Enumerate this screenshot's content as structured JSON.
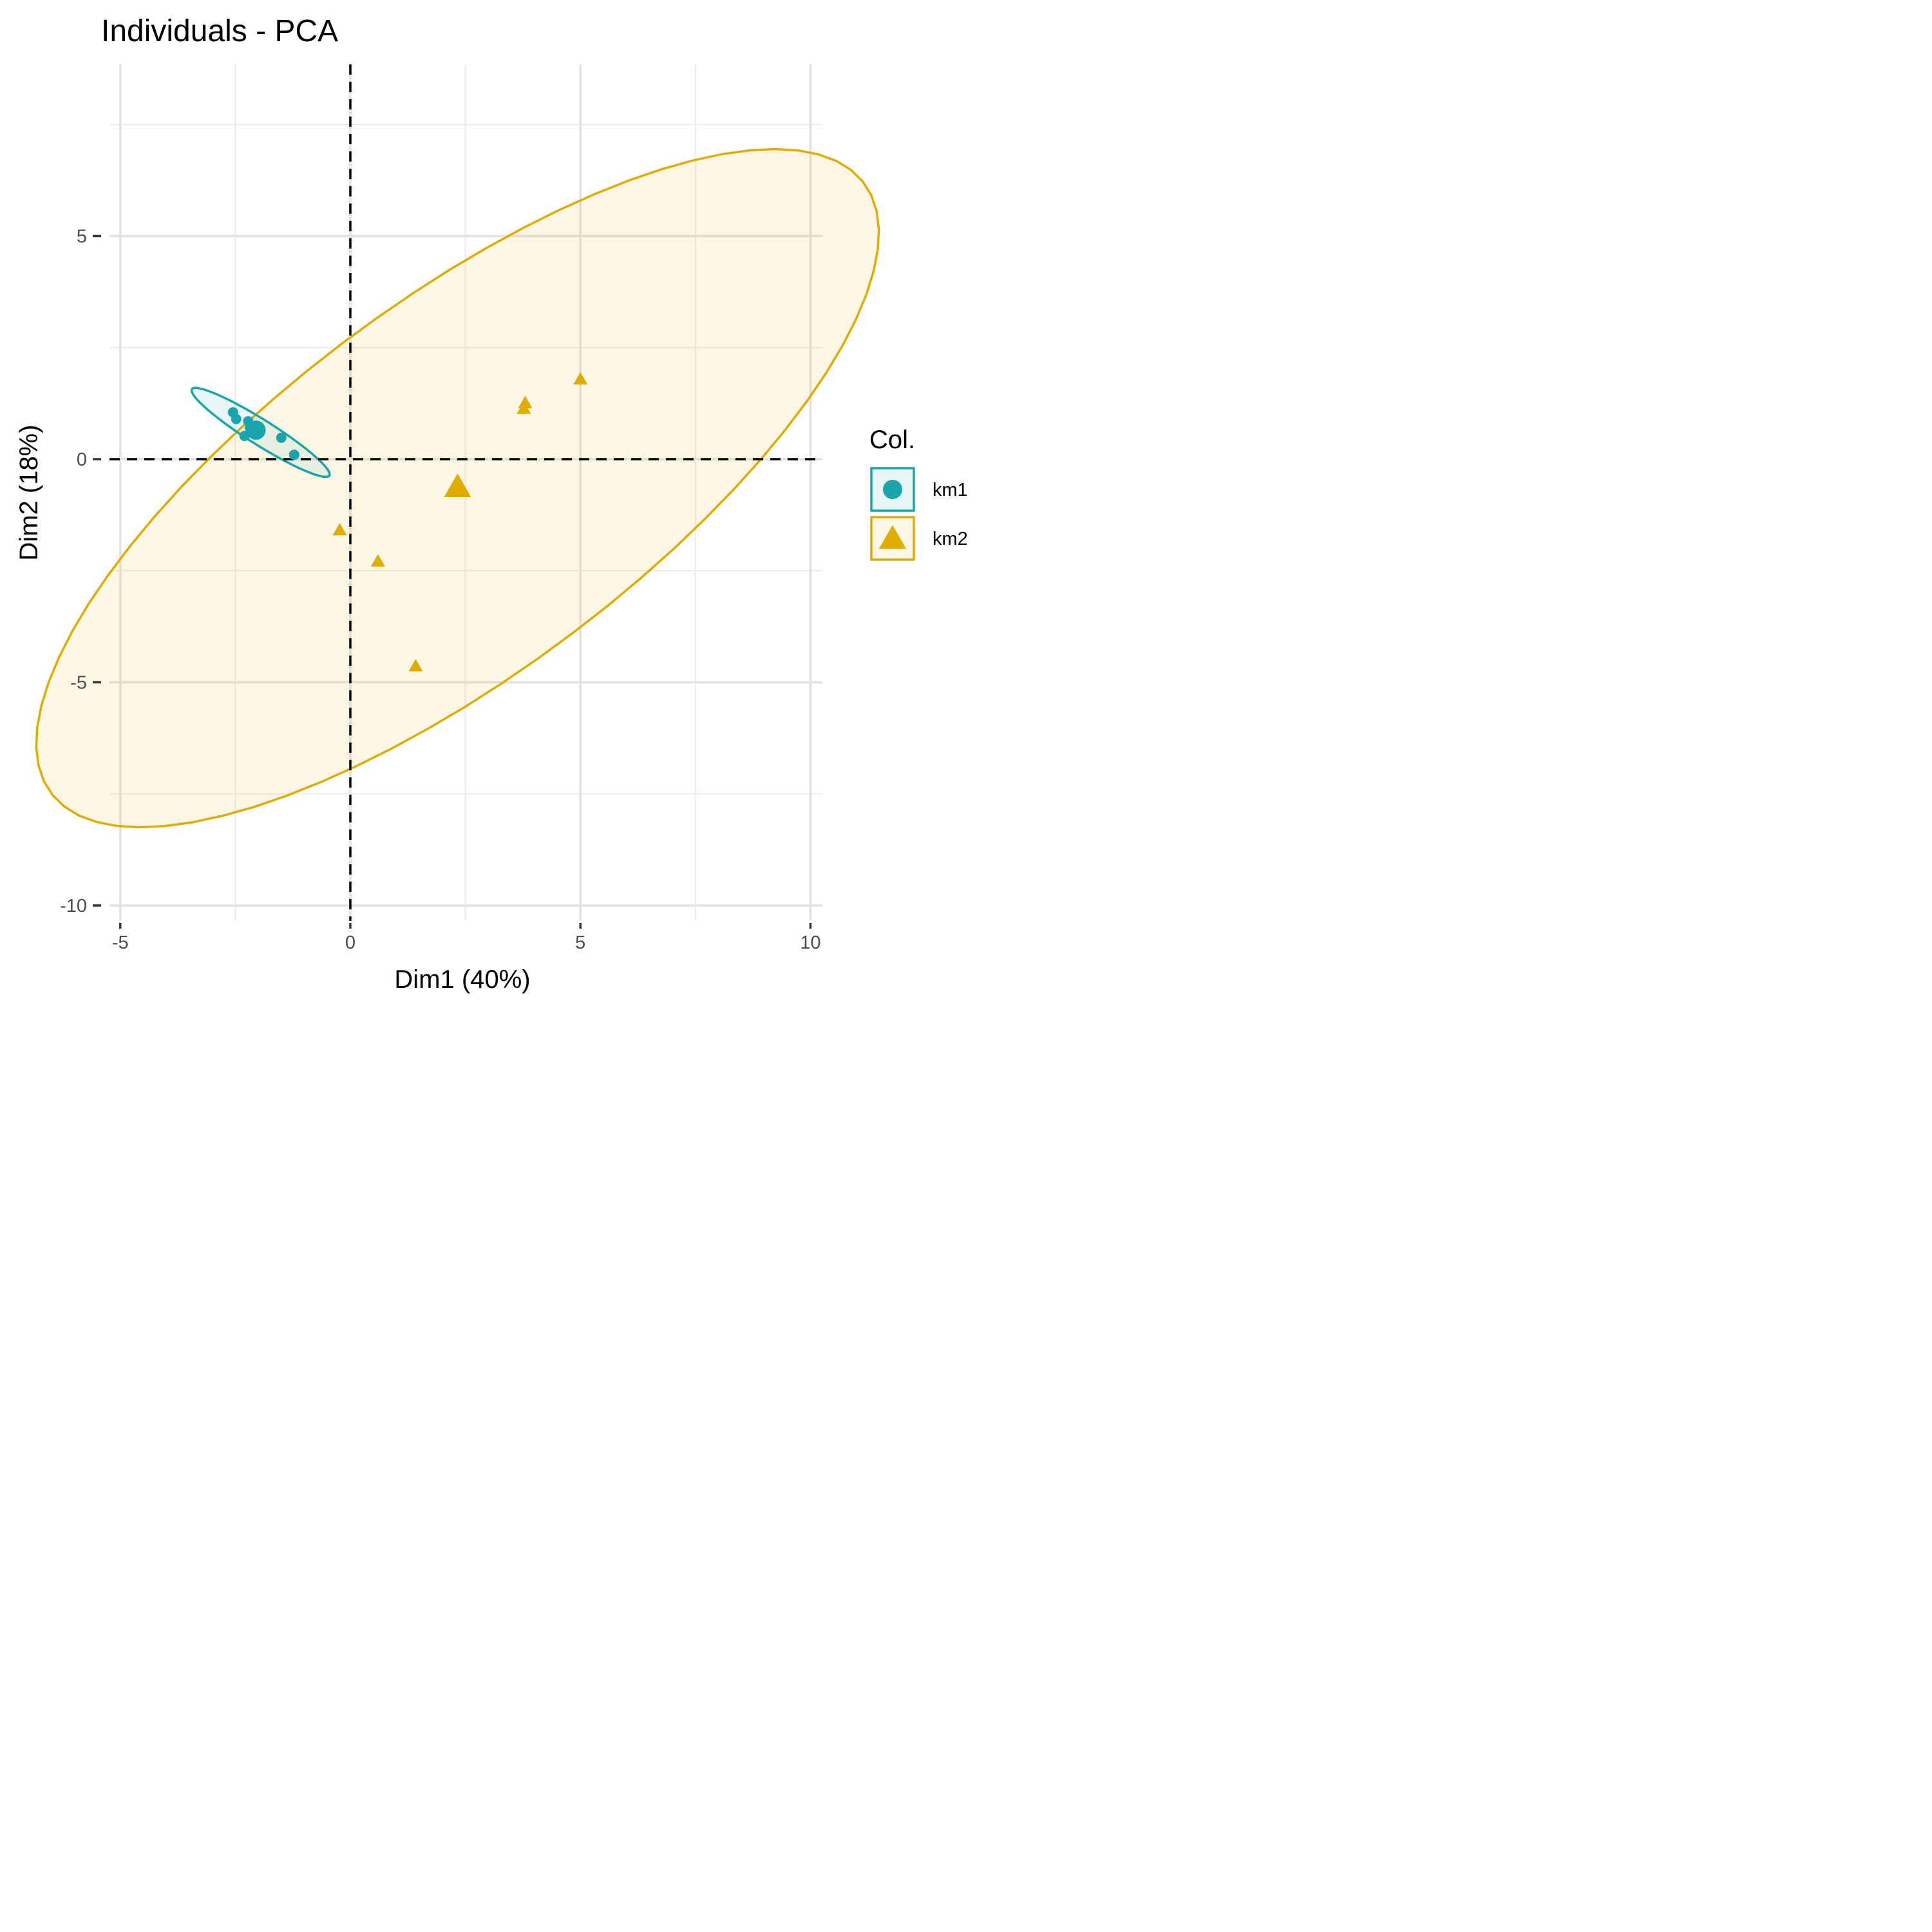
{
  "chart_data": {
    "type": "scatter",
    "title": "Individuals - PCA",
    "xlabel": "Dim1 (40%)",
    "ylabel": "Dim2 (18%)",
    "xlim": [
      -5,
      10
    ],
    "ylim": [
      -10,
      8.5
    ],
    "xticks": [
      -5,
      0,
      5,
      10
    ],
    "xtick_labels": [
      "-5",
      "0",
      "5",
      "10"
    ],
    "yticks": [
      -10,
      -5,
      0,
      5
    ],
    "ytick_labels": [
      "-10",
      "-5",
      "0",
      "5"
    ],
    "grid": true,
    "reference_lines": {
      "x": 0,
      "y": 0,
      "style": "dashed"
    },
    "legend": {
      "title": "Col.",
      "position": "right"
    },
    "series": [
      {
        "name": "km1",
        "marker": "circle",
        "color": "#1aa5ad",
        "points": [
          {
            "x": -2.55,
            "y": 1.05
          },
          {
            "x": -2.48,
            "y": 0.9
          },
          {
            "x": -2.22,
            "y": 0.85
          },
          {
            "x": -2.18,
            "y": 0.7
          },
          {
            "x": -2.3,
            "y": 0.52
          },
          {
            "x": -1.5,
            "y": 0.48
          },
          {
            "x": -1.22,
            "y": 0.1
          }
        ],
        "centroid": {
          "x": -2.05,
          "y": 0.65
        },
        "ellipse": {
          "cx": -1.95,
          "cy": 0.6,
          "a": 1.78,
          "b": 0.28,
          "angle_deg": -33
        }
      },
      {
        "name": "km2",
        "marker": "triangle",
        "color": "#e0ac00",
        "points": [
          {
            "x": 5.0,
            "y": 1.78
          },
          {
            "x": 3.8,
            "y": 1.25
          },
          {
            "x": 3.77,
            "y": 1.12
          },
          {
            "x": -0.23,
            "y": -1.6
          },
          {
            "x": 0.6,
            "y": -2.3
          },
          {
            "x": 1.42,
            "y": -4.65
          }
        ],
        "centroid": {
          "x": 2.33,
          "y": -0.65
        },
        "ellipse": {
          "cx": 2.33,
          "cy": -0.65,
          "a": 11.17,
          "b": 4.1,
          "angle_deg": 38
        }
      }
    ]
  }
}
